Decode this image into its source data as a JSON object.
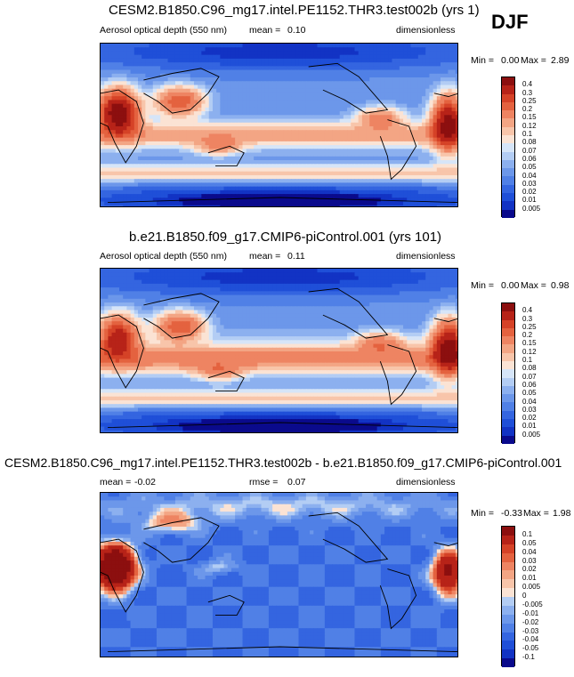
{
  "season": "DJF",
  "colors": {
    "positive_scale": [
      "#0a0a8c",
      "#1233c4",
      "#1f4fd8",
      "#3465e0",
      "#5080e6",
      "#6c97ea",
      "#8cb0ef",
      "#b3cdf4",
      "#d6e5f8",
      "#fbe3d4",
      "#f8c5aa",
      "#f3a584",
      "#ee8462",
      "#e4623f",
      "#d54227",
      "#b72318",
      "#8c0f0f"
    ],
    "diff_scale": [
      "#0a0a8c",
      "#1233c4",
      "#1f4fd8",
      "#3465e0",
      "#5080e6",
      "#6c97ea",
      "#8cb0ef",
      "#b3cdf4",
      "#d6e5f8",
      "#fbe3d4",
      "#f8c5aa",
      "#f3a584",
      "#ee8462",
      "#e4623f",
      "#d54227",
      "#b72318",
      "#8c0f0f"
    ],
    "coastline": "#000000"
  },
  "chart_data": [
    {
      "type": "heatmap",
      "title": "CESM2.B1850.C96_mg17.intel.PE1152.THR3.test002b (yrs 1)",
      "variable": "Aerosol optical depth (550 nm)",
      "mean_label": "mean =",
      "mean": "0.10",
      "units": "dimensionless",
      "min_label": "Min =",
      "min": "0.00",
      "max_label": "Max =",
      "max": "2.89",
      "levels": [
        "0.4",
        "0.3",
        "0.25",
        "0.2",
        "0.15",
        "0.12",
        "0.1",
        "0.08",
        "0.07",
        "0.06",
        "0.05",
        "0.04",
        "0.03",
        "0.02",
        "0.01",
        "0.005"
      ],
      "projection": "global cylindrical, Pacific-centered"
    },
    {
      "type": "heatmap",
      "title": "b.e21.B1850.f09_g17.CMIP6-piControl.001 (yrs 101)",
      "variable": "Aerosol optical depth (550 nm)",
      "mean_label": "mean =",
      "mean": "0.11",
      "units": "dimensionless",
      "min_label": "Min =",
      "min": "0.00",
      "max_label": "Max =",
      "max": "0.98",
      "levels": [
        "0.4",
        "0.3",
        "0.25",
        "0.2",
        "0.15",
        "0.12",
        "0.1",
        "0.08",
        "0.07",
        "0.06",
        "0.05",
        "0.04",
        "0.03",
        "0.02",
        "0.01",
        "0.005"
      ],
      "projection": "global cylindrical, Pacific-centered"
    },
    {
      "type": "heatmap",
      "title": "CESM2.B1850.C96_mg17.intel.PE1152.THR3.test002b - b.e21.B1850.f09_g17.CMIP6-piControl.001",
      "mean_label": "mean =",
      "mean": "-0.02",
      "rmse_label": "rmse =",
      "rmse": "0.07",
      "units": "dimensionless",
      "min_label": "Min =",
      "min": "-0.33",
      "max_label": "Max =",
      "max": "1.98",
      "levels": [
        "0.1",
        "0.05",
        "0.04",
        "0.03",
        "0.02",
        "0.01",
        "0.005",
        "0",
        "-0.005",
        "-0.01",
        "-0.02",
        "-0.03",
        "-0.04",
        "-0.05",
        "-0.1"
      ],
      "projection": "global cylindrical, Pacific-centered"
    }
  ]
}
